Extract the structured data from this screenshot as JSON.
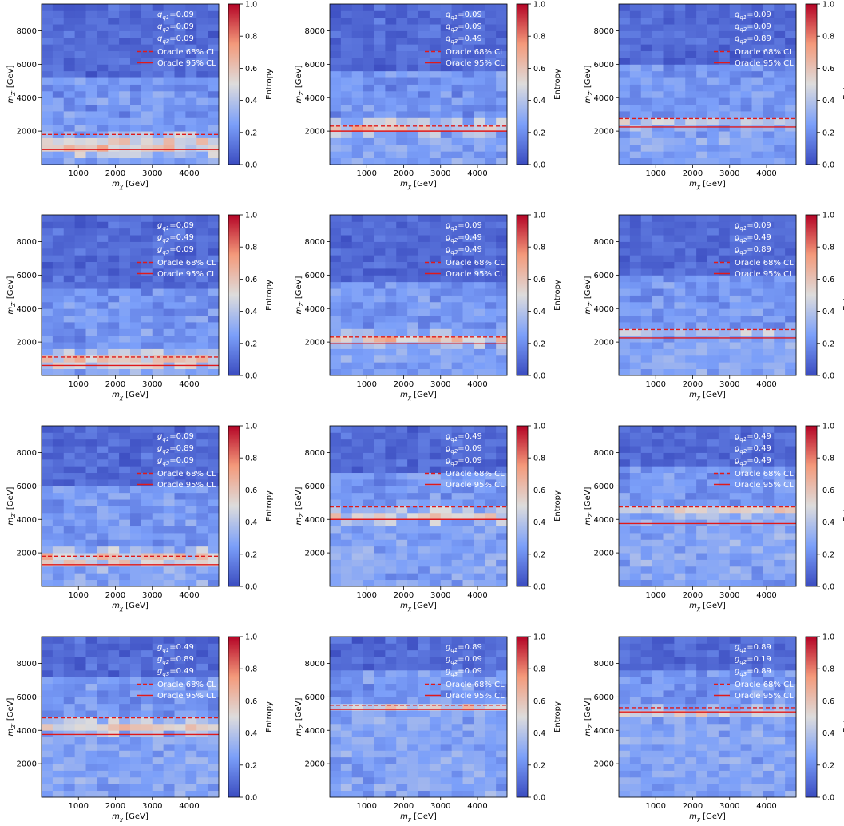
{
  "figure": {
    "colorbar": {
      "label": "Entropy",
      "ticks": [
        "0.0",
        "0.2",
        "0.4",
        "0.6",
        "0.8",
        "1.0"
      ],
      "range": [
        0,
        1
      ],
      "colormap": "coolwarm"
    },
    "axes": {
      "xlabel": "m_χ [GeV]",
      "ylabel": "m_Z′ [GeV]",
      "xticks": [
        1000,
        2000,
        3000,
        4000
      ],
      "yticks": [
        2000,
        4000,
        6000,
        8000
      ],
      "xtick_labels": [
        "1000",
        "2000",
        "3000",
        "4000"
      ],
      "ytick_labels": [
        "2000",
        "4000",
        "6000",
        "8000"
      ],
      "xlim": [
        0,
        4800
      ],
      "ylim": [
        0,
        9600
      ]
    },
    "legend": {
      "cl68": "Oracle 68% CL",
      "cl95": "Oracle 95% CL",
      "placement": "top-right"
    },
    "colors": {
      "contour": "#e0191a",
      "text": "#ffffff"
    }
  },
  "chart_data": [
    {
      "type": "heatmap",
      "couplings": [
        "0.09",
        "0.09",
        "0.09"
      ],
      "cl68_y": 1800,
      "cl95_y": 900,
      "band": [
        300,
        2000
      ],
      "band_peak": 0.62,
      "top_cutoff": 5200,
      "noise": 0.1,
      "seed": 11
    },
    {
      "type": "heatmap",
      "couplings": [
        "0.09",
        "0.09",
        "0.49"
      ],
      "cl68_y": 2300,
      "cl95_y": 2000,
      "band": [
        1800,
        2700
      ],
      "band_peak": 0.55,
      "top_cutoff": 5600,
      "noise": 0.1,
      "seed": 23
    },
    {
      "type": "heatmap",
      "couplings": [
        "0.09",
        "0.09",
        "0.89"
      ],
      "cl68_y": 2750,
      "cl95_y": 2250,
      "band": [
        2200,
        2800
      ],
      "band_peak": 0.45,
      "top_cutoff": 6000,
      "noise": 0.08,
      "seed": 37
    },
    {
      "type": "heatmap",
      "couplings": [
        "0.09",
        "0.49",
        "0.09"
      ],
      "cl68_y": 1100,
      "cl95_y": 600,
      "band": [
        300,
        1500
      ],
      "band_peak": 0.62,
      "top_cutoff": 5000,
      "noise": 0.1,
      "seed": 41
    },
    {
      "type": "heatmap",
      "couplings": [
        "0.09",
        "0.49",
        "0.49"
      ],
      "cl68_y": 2300,
      "cl95_y": 1900,
      "band": [
        1800,
        2600
      ],
      "band_peak": 0.55,
      "top_cutoff": 5600,
      "noise": 0.09,
      "seed": 53
    },
    {
      "type": "heatmap",
      "couplings": [
        "0.09",
        "0.49",
        "0.89"
      ],
      "cl68_y": 2750,
      "cl95_y": 2250,
      "band": [
        2300,
        2800
      ],
      "band_peak": 0.42,
      "top_cutoff": 6000,
      "noise": 0.07,
      "seed": 61
    },
    {
      "type": "heatmap",
      "couplings": [
        "0.09",
        "0.89",
        "0.09"
      ],
      "cl68_y": 1800,
      "cl95_y": 1300,
      "band": [
        1000,
        2300
      ],
      "band_peak": 0.6,
      "top_cutoff": 6000,
      "noise": 0.1,
      "seed": 71
    },
    {
      "type": "heatmap",
      "couplings": [
        "0.49",
        "0.09",
        "0.09"
      ],
      "cl68_y": 4750,
      "cl95_y": 4000,
      "band": [
        3600,
        4900
      ],
      "band_peak": 0.5,
      "top_cutoff": 6800,
      "noise": 0.1,
      "seed": 83
    },
    {
      "type": "heatmap",
      "couplings": [
        "0.49",
        "0.49",
        "0.49"
      ],
      "cl68_y": 4750,
      "cl95_y": 3750,
      "band": [
        4200,
        4900
      ],
      "band_peak": 0.5,
      "top_cutoff": 7000,
      "noise": 0.09,
      "seed": 97
    },
    {
      "type": "heatmap",
      "couplings": [
        "0.49",
        "0.89",
        "0.49"
      ],
      "cl68_y": 4750,
      "cl95_y": 3750,
      "band": [
        3700,
        4800
      ],
      "band_peak": 0.55,
      "top_cutoff": 7000,
      "noise": 0.09,
      "seed": 101
    },
    {
      "type": "heatmap",
      "couplings": [
        "0.89",
        "0.09",
        "0.09"
      ],
      "cl68_y": 5500,
      "cl95_y": 5250,
      "band": [
        5100,
        5700
      ],
      "band_peak": 0.5,
      "top_cutoff": 7400,
      "noise": 0.1,
      "seed": 113
    },
    {
      "type": "heatmap",
      "couplings": [
        "0.89",
        "0.19",
        "0.89"
      ],
      "cl68_y": 5350,
      "cl95_y": 5100,
      "band": [
        4800,
        5400
      ],
      "band_peak": 0.55,
      "top_cutoff": 7400,
      "noise": 0.08,
      "seed": 127
    }
  ]
}
